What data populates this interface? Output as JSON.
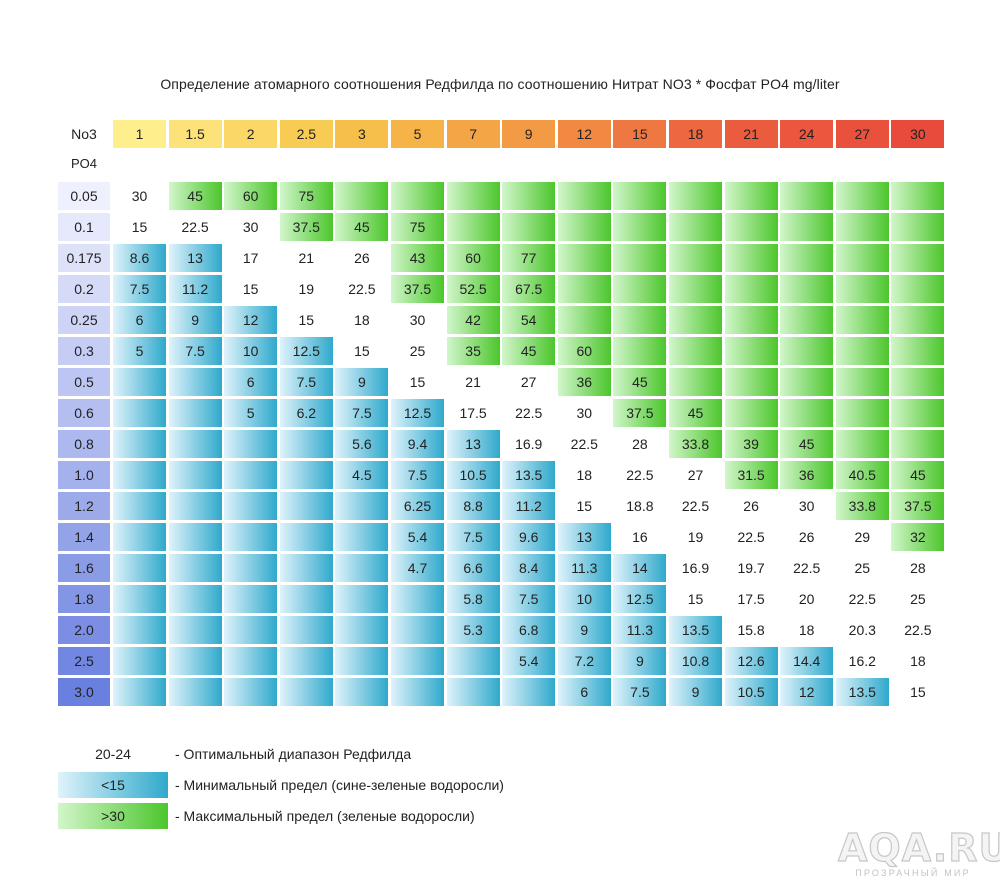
{
  "title": "Определение атомарного соотношения Редфилда по соотношению Нитрат NO3 * Фосфат PO4  mg/liter",
  "chart_data": {
    "type": "table",
    "row_axis_label": "PO4",
    "col_axis_label": "No3",
    "columns": [
      "1",
      "1.5",
      "2",
      "2.5",
      "3",
      "5",
      "7",
      "9",
      "12",
      "15",
      "18",
      "21",
      "24",
      "27",
      "30"
    ],
    "rows": [
      "0.05",
      "0.1",
      "0.175",
      "0.2",
      "0.25",
      "0.3",
      "0.5",
      "0.6",
      "0.8",
      "1.0",
      "1.2",
      "1.4",
      "1.6",
      "1.8",
      "2.0",
      "2.5",
      "3.0"
    ],
    "cells": [
      [
        "30",
        "45",
        "60",
        "75",
        "",
        "",
        "",
        "",
        "",
        "",
        "",
        "",
        "",
        "",
        ""
      ],
      [
        "15",
        "22.5",
        "30",
        "37.5",
        "45",
        "75",
        "",
        "",
        "",
        "",
        "",
        "",
        "",
        "",
        ""
      ],
      [
        "8.6",
        "13",
        "17",
        "21",
        "26",
        "43",
        "60",
        "77",
        "",
        "",
        "",
        "",
        "",
        "",
        ""
      ],
      [
        "7.5",
        "11.2",
        "15",
        "19",
        "22.5",
        "37.5",
        "52.5",
        "67.5",
        "",
        "",
        "",
        "",
        "",
        "",
        ""
      ],
      [
        "6",
        "9",
        "12",
        "15",
        "18",
        "30",
        "42",
        "54",
        "",
        "",
        "",
        "",
        "",
        "",
        ""
      ],
      [
        "5",
        "7.5",
        "10",
        "12.5",
        "15",
        "25",
        "35",
        "45",
        "60",
        "",
        "",
        "",
        "",
        "",
        ""
      ],
      [
        "",
        "",
        "6",
        "7.5",
        "9",
        "15",
        "21",
        "27",
        "36",
        "45",
        "",
        "",
        "",
        "",
        ""
      ],
      [
        "",
        "",
        "5",
        "6.2",
        "7.5",
        "12.5",
        "17.5",
        "22.5",
        "30",
        "37.5",
        "45",
        "",
        "",
        "",
        ""
      ],
      [
        "",
        "",
        "",
        "",
        "5.6",
        "9.4",
        "13",
        "16.9",
        "22.5",
        "28",
        "33.8",
        "39",
        "45",
        "",
        ""
      ],
      [
        "",
        "",
        "",
        "",
        "4.5",
        "7.5",
        "10.5",
        "13.5",
        "18",
        "22.5",
        "27",
        "31.5",
        "36",
        "40.5",
        "45"
      ],
      [
        "",
        "",
        "",
        "",
        "",
        "6.25",
        "8.8",
        "11.2",
        "15",
        "18.8",
        "22.5",
        "26",
        "30",
        "33.8",
        "37.5"
      ],
      [
        "",
        "",
        "",
        "",
        "",
        "5.4",
        "7.5",
        "9.6",
        "13",
        "16",
        "19",
        "22.5",
        "26",
        "29",
        "32"
      ],
      [
        "",
        "",
        "",
        "",
        "",
        "4.7",
        "6.6",
        "8.4",
        "11.3",
        "14",
        "16.9",
        "19.7",
        "22.5",
        "25",
        "28"
      ],
      [
        "",
        "",
        "",
        "",
        "",
        "",
        "5.8",
        "7.5",
        "10",
        "12.5",
        "15",
        "17.5",
        "20",
        "22.5",
        "25"
      ],
      [
        "",
        "",
        "",
        "",
        "",
        "",
        "5.3",
        "6.8",
        "9",
        "11.3",
        "13.5",
        "15.8",
        "18",
        "20.3",
        "22.5"
      ],
      [
        "",
        "",
        "",
        "",
        "",
        "",
        "",
        "5.4",
        "7.2",
        "9",
        "10.8",
        "12.6",
        "14.4",
        "16.2",
        "18"
      ],
      [
        "",
        "",
        "",
        "",
        "",
        "",
        "",
        "",
        "6",
        "7.5",
        "9",
        "10.5",
        "12",
        "13.5",
        "15"
      ]
    ],
    "zones": [
      [
        "W",
        "G",
        "G",
        "G",
        "G",
        "G",
        "G",
        "G",
        "G",
        "G",
        "G",
        "G",
        "G",
        "G",
        "G"
      ],
      [
        "W",
        "W",
        "W",
        "G",
        "G",
        "G",
        "G",
        "G",
        "G",
        "G",
        "G",
        "G",
        "G",
        "G",
        "G"
      ],
      [
        "B",
        "B",
        "W",
        "W",
        "W",
        "G",
        "G",
        "G",
        "G",
        "G",
        "G",
        "G",
        "G",
        "G",
        "G"
      ],
      [
        "B",
        "B",
        "W",
        "W",
        "W",
        "G",
        "G",
        "G",
        "G",
        "G",
        "G",
        "G",
        "G",
        "G",
        "G"
      ],
      [
        "B",
        "B",
        "B",
        "W",
        "W",
        "W",
        "G",
        "G",
        "G",
        "G",
        "G",
        "G",
        "G",
        "G",
        "G"
      ],
      [
        "B",
        "B",
        "B",
        "B",
        "W",
        "W",
        "G",
        "G",
        "G",
        "G",
        "G",
        "G",
        "G",
        "G",
        "G"
      ],
      [
        "B",
        "B",
        "B",
        "B",
        "B",
        "W",
        "W",
        "W",
        "G",
        "G",
        "G",
        "G",
        "G",
        "G",
        "G"
      ],
      [
        "B",
        "B",
        "B",
        "B",
        "B",
        "B",
        "W",
        "W",
        "W",
        "G",
        "G",
        "G",
        "G",
        "G",
        "G"
      ],
      [
        "B",
        "B",
        "B",
        "B",
        "B",
        "B",
        "B",
        "W",
        "W",
        "W",
        "G",
        "G",
        "G",
        "G",
        "G"
      ],
      [
        "B",
        "B",
        "B",
        "B",
        "B",
        "B",
        "B",
        "B",
        "W",
        "W",
        "W",
        "G",
        "G",
        "G",
        "G"
      ],
      [
        "B",
        "B",
        "B",
        "B",
        "B",
        "B",
        "B",
        "B",
        "W",
        "W",
        "W",
        "W",
        "W",
        "G",
        "G"
      ],
      [
        "B",
        "B",
        "B",
        "B",
        "B",
        "B",
        "B",
        "B",
        "B",
        "W",
        "W",
        "W",
        "W",
        "W",
        "G"
      ],
      [
        "B",
        "B",
        "B",
        "B",
        "B",
        "B",
        "B",
        "B",
        "B",
        "B",
        "W",
        "W",
        "W",
        "W",
        "W"
      ],
      [
        "B",
        "B",
        "B",
        "B",
        "B",
        "B",
        "B",
        "B",
        "B",
        "B",
        "W",
        "W",
        "W",
        "W",
        "W"
      ],
      [
        "B",
        "B",
        "B",
        "B",
        "B",
        "B",
        "B",
        "B",
        "B",
        "B",
        "B",
        "W",
        "W",
        "W",
        "W"
      ],
      [
        "B",
        "B",
        "B",
        "B",
        "B",
        "B",
        "B",
        "B",
        "B",
        "B",
        "B",
        "B",
        "B",
        "W",
        "W"
      ],
      [
        "B",
        "B",
        "B",
        "B",
        "B",
        "B",
        "B",
        "B",
        "B",
        "B",
        "B",
        "B",
        "B",
        "B",
        "W"
      ]
    ],
    "legend": [
      {
        "swatch": "20-24",
        "text": "- Оптимальный диапазон Редфилда"
      },
      {
        "swatch": "<15",
        "text": "- Минимальный предел (сине-зеленые водоросли)"
      },
      {
        "swatch": ">30",
        "text": "- Максимальный предел (зеленые водоросли)"
      }
    ],
    "colors": {
      "header_gradient": [
        "#ffee8c",
        "#f7c54a",
        "#f39a45",
        "#ec5f3f",
        "#e84b3c"
      ],
      "green_light": "#d2f6cb",
      "green_dark": "#4cc62c",
      "blue_light": "#dff3fb",
      "blue_dark": "#2fa9cc",
      "row_label_light": "#eef0fd",
      "row_label_dark": "#6a80df"
    }
  },
  "watermark": {
    "main": "AQA.RU",
    "sub": "ПРОЗРАЧНЫЙ МИР"
  }
}
